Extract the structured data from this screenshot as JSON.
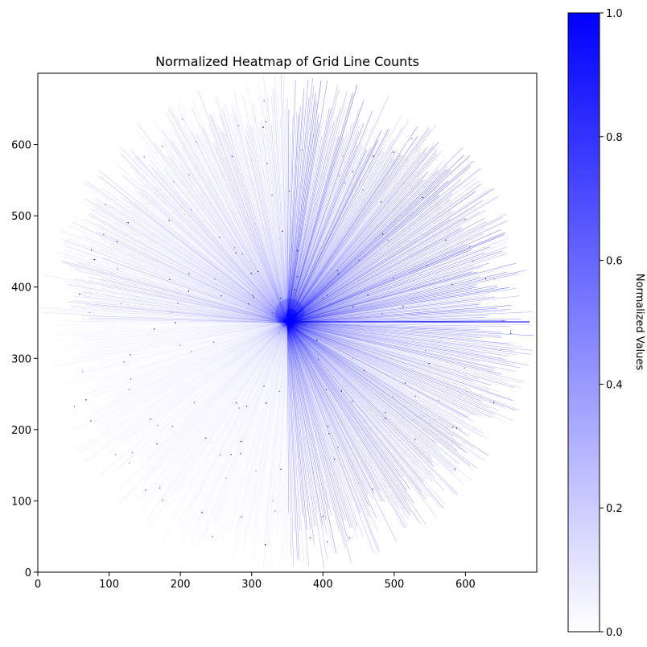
{
  "chart_data": {
    "type": "heatmap",
    "title": "Normalized Heatmap of Grid Line Counts",
    "xlabel": "",
    "ylabel": "",
    "xlim": [
      0,
      700
    ],
    "ylim": [
      0,
      700
    ],
    "x_ticks": [
      0,
      100,
      200,
      300,
      400,
      500,
      600
    ],
    "y_ticks": [
      0,
      100,
      200,
      300,
      400,
      500,
      600
    ],
    "colorbar": {
      "label": "Normalized Values",
      "range": [
        0,
        1
      ],
      "ticks": [
        "0.0",
        "0.2",
        "0.4",
        "0.6",
        "0.8",
        "1.0"
      ],
      "colormap": [
        "#ffffff",
        "#0000ff"
      ]
    },
    "center": [
      350,
      350
    ],
    "radius": 340,
    "grid": false
  }
}
